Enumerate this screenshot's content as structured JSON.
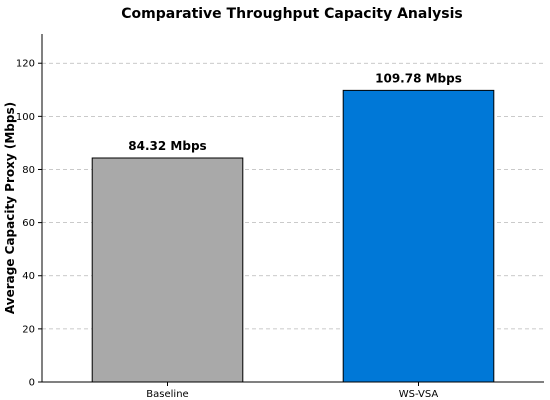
{
  "chart_data": {
    "type": "bar",
    "title": "Comparative Throughput Capacity Analysis",
    "xlabel": "",
    "ylabel": "Average Capacity Proxy (Mbps)",
    "categories": [
      "Baseline",
      "WS-VSA"
    ],
    "values": [
      84.32,
      109.78
    ],
    "data_labels": [
      "84.32 Mbps",
      "109.78 Mbps"
    ],
    "colors": [
      "#a9a9a9",
      "#0078d7"
    ],
    "ylim": [
      0,
      131
    ],
    "yticks": [
      0,
      20,
      40,
      60,
      80,
      100,
      120
    ],
    "grid": true,
    "grid_axis": "y"
  }
}
